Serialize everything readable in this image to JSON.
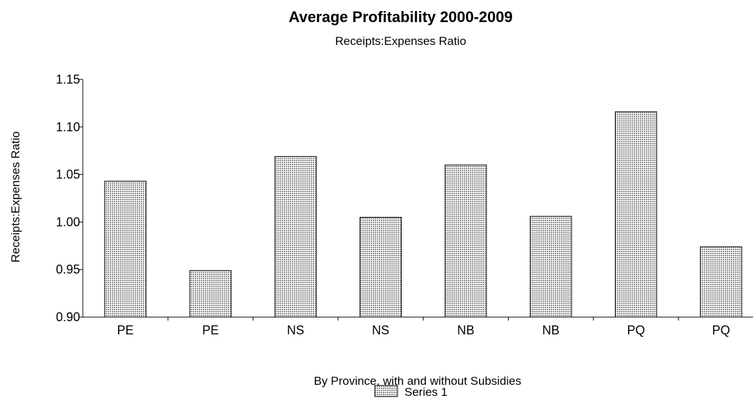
{
  "chart_data": {
    "type": "bar",
    "title": "Average Profitability 2000-2009",
    "subtitle": "Receipts:Expenses Ratio",
    "xlabel": "By Province, with and without Subsidies",
    "ylabel": "Receipts:Expenses Ratio",
    "categories": [
      "PE",
      "PE",
      "NS",
      "NS",
      "NB",
      "NB",
      "PQ",
      "PQ"
    ],
    "series": [
      {
        "name": "Series 1",
        "values": [
          1.043,
          0.949,
          1.069,
          1.005,
          1.06,
          1.006,
          1.116,
          0.974
        ]
      }
    ],
    "ylim": [
      0.9,
      1.15
    ],
    "yticks": [
      "0.90",
      "0.95",
      "1.00",
      "1.05",
      "1.10",
      "1.15"
    ],
    "grid": false,
    "legend_position": "bottom-center",
    "bar_fill": "#c4c4c4",
    "bar_stroke": "#000000"
  }
}
